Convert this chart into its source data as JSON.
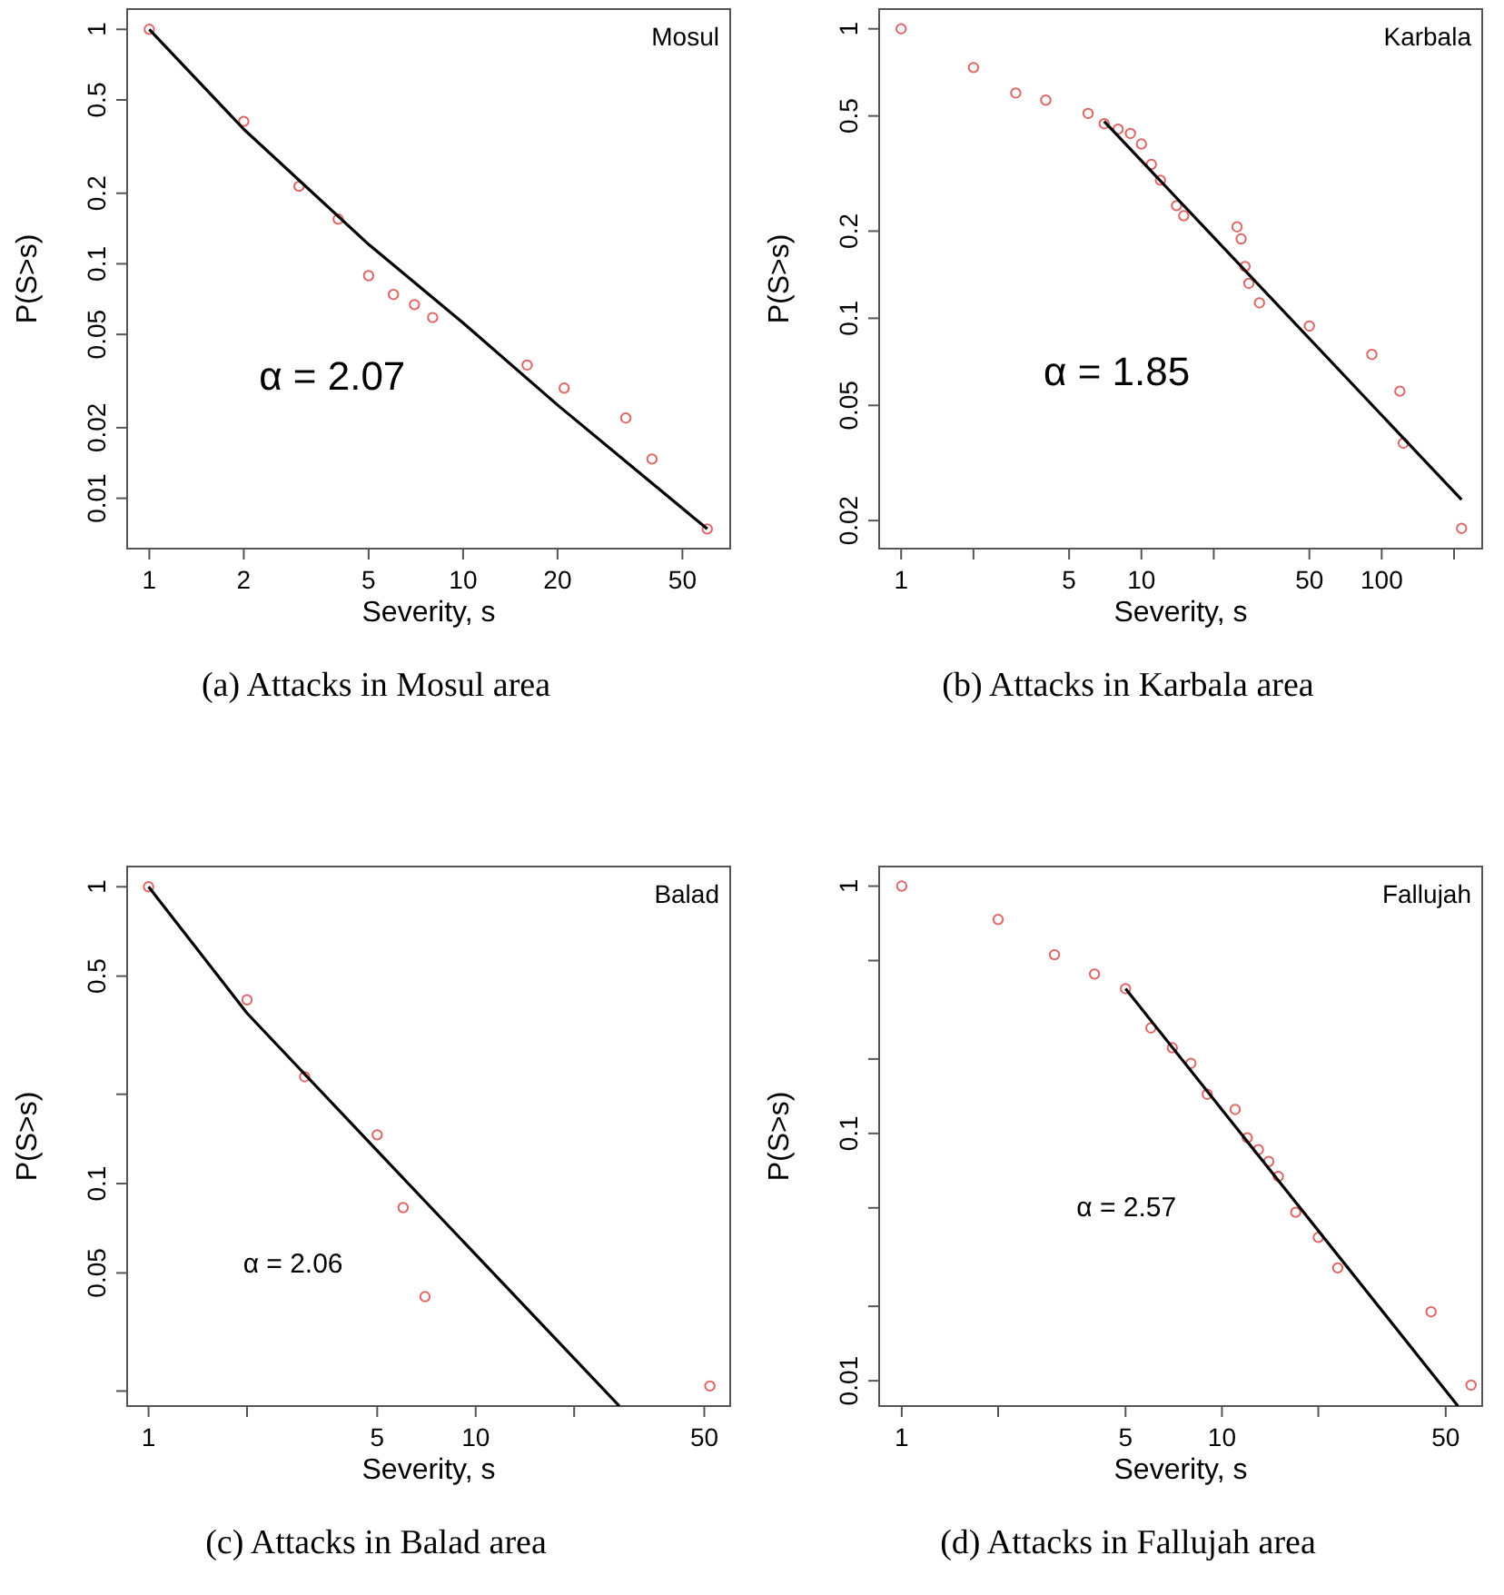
{
  "chart_data": [
    {
      "type": "scatter",
      "title": "Mosul",
      "xlabel": "Severity, s",
      "ylabel": "P(S>s)",
      "log": "xy",
      "marker": "circle",
      "xlim": [
        0.85,
        71
      ],
      "ylim": [
        0.0061,
        1.22
      ],
      "xticks": [
        1,
        2,
        5,
        10,
        20,
        50
      ],
      "yticks": [
        1,
        0.5,
        0.2,
        0.1,
        0.05,
        0.02,
        0.01
      ],
      "annotations": [
        "α = 2.07",
        "(a) Attacks in Mosul area"
      ],
      "series": [
        {
          "color": "#e06666",
          "x": [
            1,
            2,
            3,
            4,
            5,
            6,
            7,
            8,
            16,
            21,
            33,
            40,
            60
          ],
          "values": [
            1,
            0.405,
            0.214,
            0.155,
            0.089,
            0.074,
            0.067,
            0.059,
            0.037,
            0.0295,
            0.022,
            0.0147,
            0.0074
          ]
        },
        {
          "type": "line",
          "marker": "none",
          "color": "#000000",
          "x": [
            1,
            2,
            5,
            10,
            20,
            60
          ],
          "values": [
            1,
            0.375,
            0.121,
            0.056,
            0.025,
            0.0074
          ]
        }
      ]
    },
    {
      "type": "scatter",
      "title": "Karbala",
      "xlabel": "Severity, s",
      "ylabel": "P(S>s)",
      "log": "xy",
      "marker": "circle",
      "xlim": [
        0.81,
        262
      ],
      "ylim": [
        0.016,
        1.17
      ],
      "xticks": [
        1,
        {
          "value": 2,
          "label": null
        },
        5,
        10,
        {
          "value": 20,
          "label": null
        },
        50,
        100,
        {
          "value": 200,
          "label": null
        }
      ],
      "yticks": [
        1,
        0.5,
        0.2,
        0.1,
        0.05,
        0.02
      ],
      "annotations": [
        "α = 1.85",
        "(b) Attacks in Karbala area"
      ],
      "series": [
        {
          "color": "#e06666",
          "x": [
            1,
            2,
            3,
            4,
            6,
            7,
            8,
            9,
            10,
            11,
            12,
            14,
            15,
            25,
            26,
            27,
            28,
            31,
            50,
            91,
            119,
            123,
            215
          ],
          "values": [
            1,
            0.735,
            0.6,
            0.567,
            0.51,
            0.47,
            0.45,
            0.435,
            0.4,
            0.34,
            0.3,
            0.245,
            0.226,
            0.207,
            0.188,
            0.151,
            0.132,
            0.113,
            0.094,
            0.075,
            0.056,
            0.037,
            0.0188
          ]
        },
        {
          "type": "line",
          "marker": "none",
          "color": "#000000",
          "x": [
            7,
            215
          ],
          "values": [
            0.479,
            0.0236
          ]
        }
      ]
    },
    {
      "type": "scatter",
      "title": "Balad",
      "xlabel": "Severity, s",
      "ylabel": "P(S>s)",
      "log": "xy",
      "marker": "circle",
      "xlim": [
        0.86,
        60
      ],
      "ylim": [
        0.0178,
        1.17
      ],
      "xticks": [
        1,
        {
          "value": 2,
          "label": null
        },
        5,
        10,
        {
          "value": 20,
          "label": null
        },
        50
      ],
      "yticks": [
        1,
        0.5,
        {
          "value": 0.2,
          "label": null
        },
        0.1,
        0.05,
        {
          "value": 0.02,
          "label": null
        }
      ],
      "annotations": [
        "α = 2.06",
        "(c) Attacks in Balad area"
      ],
      "series": [
        {
          "color": "#e06666",
          "x": [
            1,
            2,
            3,
            5,
            6,
            7,
            52
          ],
          "values": [
            1,
            0.416,
            0.229,
            0.146,
            0.083,
            0.0416,
            0.0208
          ]
        },
        {
          "type": "line",
          "marker": "none",
          "color": "#000000",
          "x": [
            1,
            2,
            5,
            27.5
          ],
          "values": [
            1,
            0.375,
            0.129,
            0.0178
          ]
        }
      ]
    },
    {
      "type": "scatter",
      "title": "Fallujah",
      "xlabel": "Severity, s",
      "ylabel": "P(S>s)",
      "log": "xy",
      "marker": "circle",
      "xlim": [
        0.85,
        65
      ],
      "ylim": [
        0.0079,
        1.2
      ],
      "xticks": [
        1,
        {
          "value": 2,
          "label": null
        },
        5,
        10,
        {
          "value": 20,
          "label": null
        },
        50
      ],
      "yticks": [
        1,
        {
          "value": 0.5,
          "label": null
        },
        {
          "value": 0.2,
          "label": null
        },
        0.1,
        {
          "value": 0.05,
          "label": null
        },
        {
          "value": 0.02,
          "label": null
        },
        0.01
      ],
      "annotations": [
        "α = 2.57",
        "(d) Attacks in Fallujah area"
      ],
      "series": [
        {
          "color": "#e06666",
          "x": [
            1,
            2,
            3,
            4,
            5,
            6,
            7,
            8,
            9,
            11,
            12,
            13,
            14,
            15,
            17,
            20,
            23,
            45,
            60
          ],
          "values": [
            1,
            0.733,
            0.528,
            0.441,
            0.385,
            0.267,
            0.222,
            0.192,
            0.144,
            0.125,
            0.096,
            0.086,
            0.077,
            0.067,
            0.048,
            0.038,
            0.0286,
            0.019,
            0.0096
          ]
        },
        {
          "type": "line",
          "marker": "none",
          "color": "#000000",
          "x": [
            5,
            54.6
          ],
          "values": [
            0.385,
            0.0079
          ]
        }
      ]
    }
  ]
}
